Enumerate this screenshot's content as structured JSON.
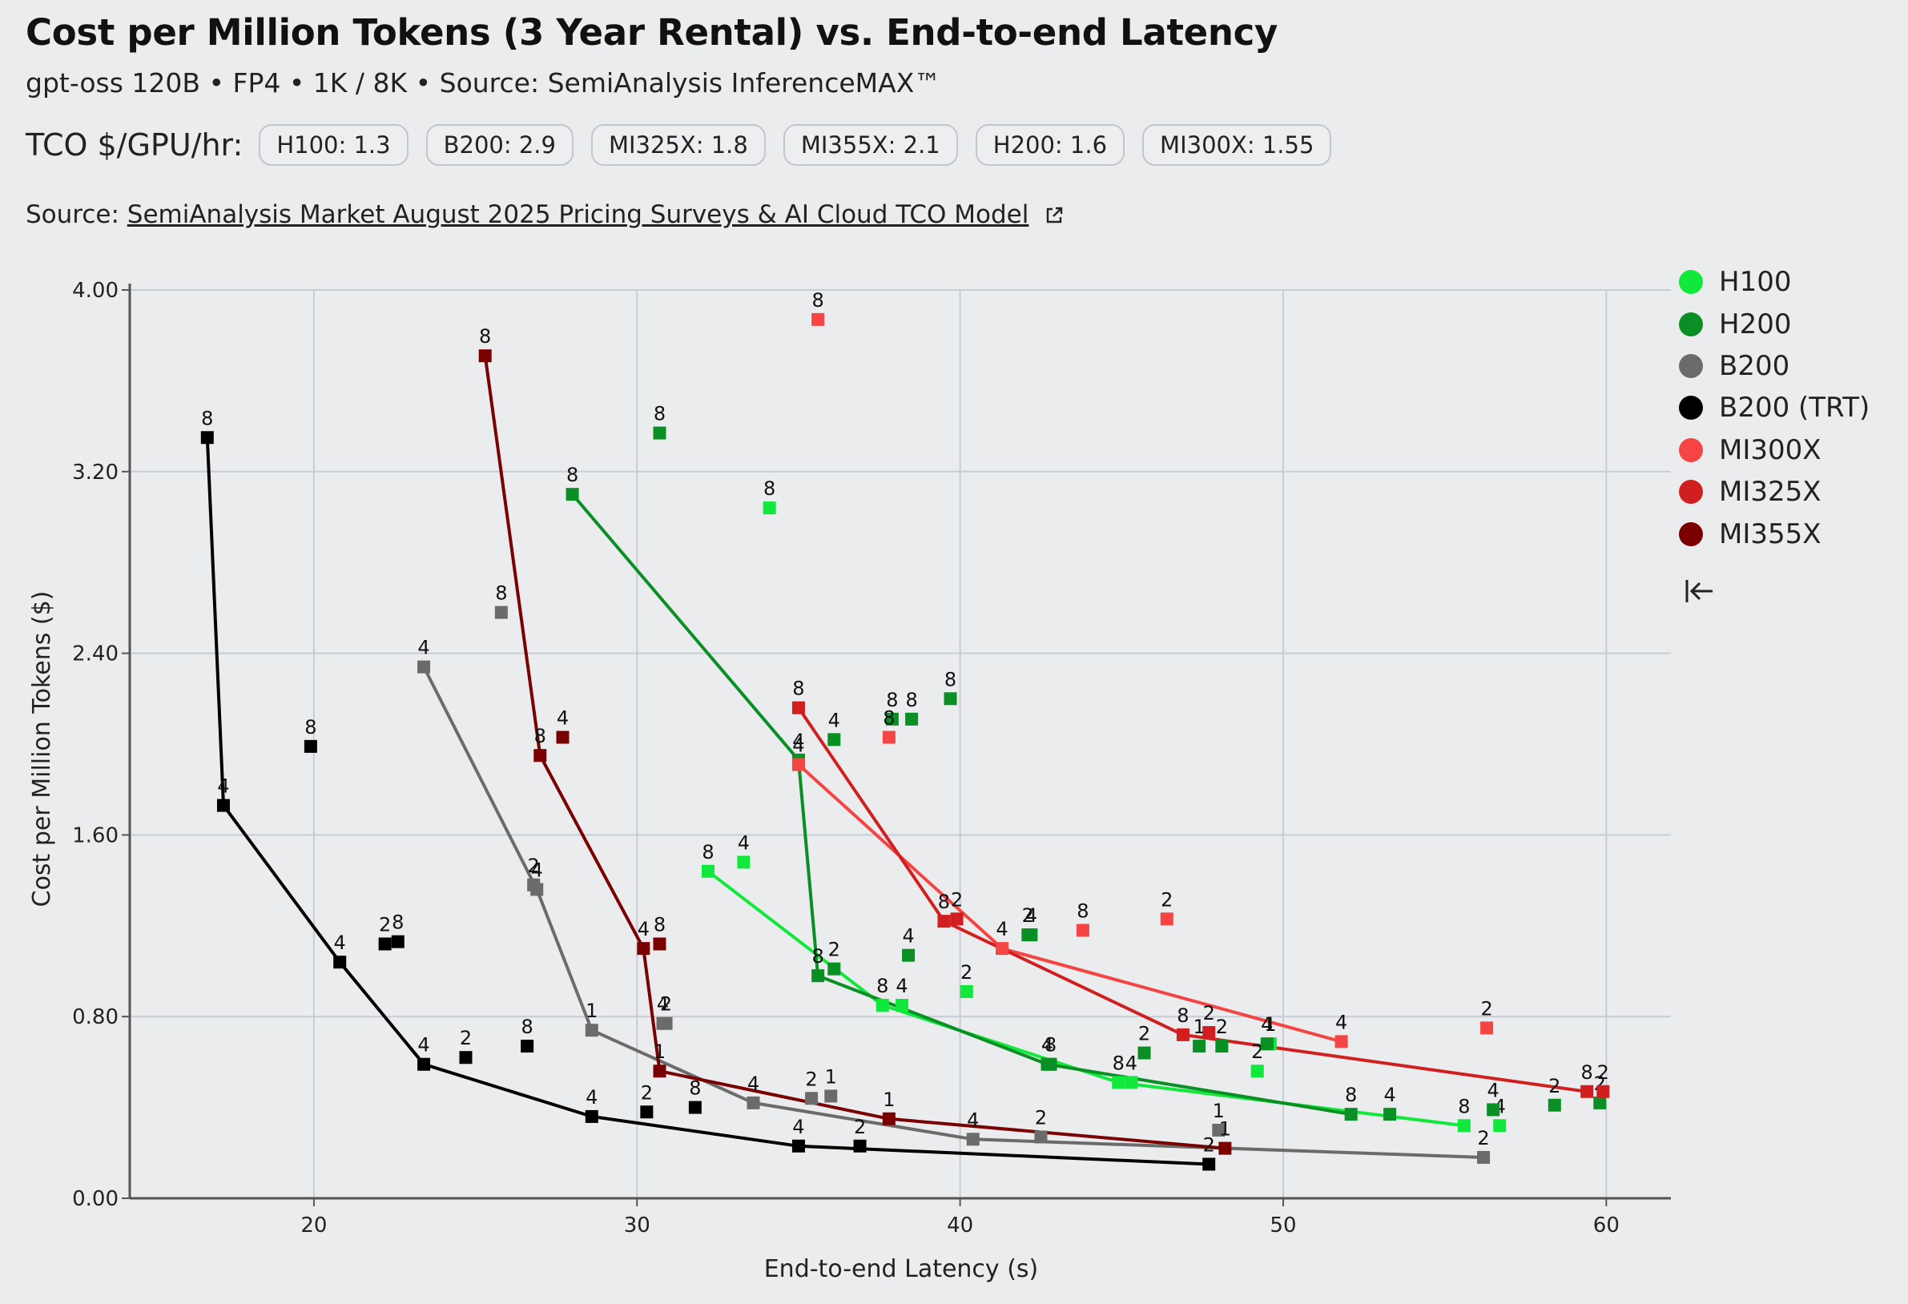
{
  "title": "Cost per Million Tokens (3 Year Rental) vs. End-to-end Latency",
  "subtitle": "gpt-oss 120B • FP4 • 1K / 8K • Source: SemiAnalysis InferenceMAX™",
  "tco": {
    "label": "TCO $/GPU/hr:",
    "chips": [
      "H100: 1.3",
      "B200: 2.9",
      "MI325X: 1.8",
      "MI355X: 2.1",
      "H200: 1.6",
      "MI300X: 1.55"
    ]
  },
  "source": {
    "prefix": "Source:",
    "link_text": "SemiAnalysis Market August 2025 Pricing Surveys & AI Cloud TCO Model",
    "icon": "external-link-icon"
  },
  "legend": {
    "collapse_icon": "collapse-left-icon",
    "items": [
      {
        "name": "H100",
        "color": "#11e83c"
      },
      {
        "name": "H200",
        "color": "#0a8f25"
      },
      {
        "name": "B200",
        "color": "#6b6b6b"
      },
      {
        "name": "B200 (TRT)",
        "color": "#000000"
      },
      {
        "name": "MI300X",
        "color": "#f54444"
      },
      {
        "name": "MI325X",
        "color": "#d11f1f"
      },
      {
        "name": "MI355X",
        "color": "#7a0000"
      }
    ]
  },
  "chart_data": {
    "type": "scatter",
    "xlabel": "End-to-end Latency (s)",
    "ylabel": "Cost per Million Tokens ($)",
    "xlim": [
      14.3,
      62
    ],
    "ylim": [
      0,
      4.0
    ],
    "xticks": [
      20,
      30,
      40,
      50,
      60
    ],
    "yticks": [
      "0.00",
      "0.80",
      "1.60",
      "2.40",
      "3.20",
      "4.00"
    ],
    "grid": true,
    "legend_position": "right",
    "series": [
      {
        "name": "H100",
        "color": "#11e83c",
        "line": [
          [
            32.2,
            1.44
          ],
          [
            37.6,
            0.85
          ],
          [
            44.9,
            0.51
          ],
          [
            55.6,
            0.32
          ]
        ],
        "points": [
          {
            "x": 32.2,
            "y": 1.44,
            "label": "8"
          },
          {
            "x": 33.3,
            "y": 1.48,
            "label": "4"
          },
          {
            "x": 34.1,
            "y": 3.04,
            "label": "8"
          },
          {
            "x": 37.6,
            "y": 0.85,
            "label": "8"
          },
          {
            "x": 38.2,
            "y": 0.85,
            "label": "4"
          },
          {
            "x": 40.2,
            "y": 0.91,
            "label": "2"
          },
          {
            "x": 44.9,
            "y": 0.51,
            "label": "8"
          },
          {
            "x": 45.3,
            "y": 0.51,
            "label": "4"
          },
          {
            "x": 49.2,
            "y": 0.56,
            "label": "2"
          },
          {
            "x": 49.6,
            "y": 0.68,
            "label": "1"
          },
          {
            "x": 55.6,
            "y": 0.32,
            "label": "8"
          },
          {
            "x": 56.7,
            "y": 0.32,
            "label": "4"
          }
        ]
      },
      {
        "name": "H200",
        "color": "#0a8f25",
        "line": [
          [
            28.0,
            3.1
          ],
          [
            35.0,
            1.93
          ],
          [
            35.6,
            0.98
          ],
          [
            42.7,
            0.59
          ],
          [
            52.1,
            0.37
          ]
        ],
        "points": [
          {
            "x": 28.0,
            "y": 3.1,
            "label": "8"
          },
          {
            "x": 30.7,
            "y": 3.37,
            "label": "8"
          },
          {
            "x": 35.0,
            "y": 1.93,
            "label": "4"
          },
          {
            "x": 36.1,
            "y": 2.02,
            "label": "4"
          },
          {
            "x": 37.9,
            "y": 2.11,
            "label": "8"
          },
          {
            "x": 38.5,
            "y": 2.11,
            "label": "8"
          },
          {
            "x": 39.7,
            "y": 2.2,
            "label": "8"
          },
          {
            "x": 35.6,
            "y": 0.98,
            "label": "8"
          },
          {
            "x": 36.1,
            "y": 1.01,
            "label": "2"
          },
          {
            "x": 38.4,
            "y": 1.07,
            "label": "4"
          },
          {
            "x": 42.1,
            "y": 1.16,
            "label": "2"
          },
          {
            "x": 42.2,
            "y": 1.16,
            "label": "4"
          },
          {
            "x": 42.7,
            "y": 0.59,
            "label": "4"
          },
          {
            "x": 42.8,
            "y": 0.59,
            "label": "8"
          },
          {
            "x": 45.7,
            "y": 0.64,
            "label": "2"
          },
          {
            "x": 47.4,
            "y": 0.67,
            "label": "1"
          },
          {
            "x": 48.1,
            "y": 0.67,
            "label": "2"
          },
          {
            "x": 49.5,
            "y": 0.68,
            "label": "4"
          },
          {
            "x": 52.1,
            "y": 0.37,
            "label": "8"
          },
          {
            "x": 53.3,
            "y": 0.37,
            "label": "4"
          },
          {
            "x": 56.5,
            "y": 0.39,
            "label": "4"
          },
          {
            "x": 58.4,
            "y": 0.41,
            "label": "2"
          },
          {
            "x": 59.8,
            "y": 0.42,
            "label": "2"
          }
        ]
      },
      {
        "name": "B200",
        "color": "#6b6b6b",
        "line": [
          [
            23.4,
            2.34
          ],
          [
            26.9,
            1.36
          ],
          [
            28.6,
            0.74
          ],
          [
            33.6,
            0.42
          ],
          [
            40.4,
            0.26
          ],
          [
            56.2,
            0.18
          ]
        ],
        "points": [
          {
            "x": 23.4,
            "y": 2.34,
            "label": "4"
          },
          {
            "x": 25.8,
            "y": 2.58,
            "label": "8"
          },
          {
            "x": 26.8,
            "y": 1.38,
            "label": "2"
          },
          {
            "x": 26.9,
            "y": 1.36,
            "label": "4"
          },
          {
            "x": 28.6,
            "y": 0.74,
            "label": "1"
          },
          {
            "x": 30.8,
            "y": 0.77,
            "label": "4"
          },
          {
            "x": 30.9,
            "y": 0.77,
            "label": "2"
          },
          {
            "x": 33.6,
            "y": 0.42,
            "label": "4"
          },
          {
            "x": 35.4,
            "y": 0.44,
            "label": "2"
          },
          {
            "x": 36.0,
            "y": 0.45,
            "label": "1"
          },
          {
            "x": 40.4,
            "y": 0.26,
            "label": "4"
          },
          {
            "x": 42.5,
            "y": 0.27,
            "label": "2"
          },
          {
            "x": 48.0,
            "y": 0.3,
            "label": "1"
          },
          {
            "x": 56.2,
            "y": 0.18,
            "label": "2"
          }
        ]
      },
      {
        "name": "B200 (TRT)",
        "color": "#000000",
        "line": [
          [
            16.7,
            3.35
          ],
          [
            17.2,
            1.73
          ],
          [
            20.8,
            1.04
          ],
          [
            23.4,
            0.59
          ],
          [
            28.6,
            0.36
          ],
          [
            35.0,
            0.23
          ],
          [
            47.7,
            0.15
          ]
        ],
        "points": [
          {
            "x": 16.7,
            "y": 3.35,
            "label": "8"
          },
          {
            "x": 17.2,
            "y": 1.73,
            "label": "4"
          },
          {
            "x": 19.9,
            "y": 1.99,
            "label": "8"
          },
          {
            "x": 20.8,
            "y": 1.04,
            "label": "4"
          },
          {
            "x": 22.2,
            "y": 1.12,
            "label": "2"
          },
          {
            "x": 22.6,
            "y": 1.13,
            "label": "8"
          },
          {
            "x": 23.4,
            "y": 0.59,
            "label": "4"
          },
          {
            "x": 24.7,
            "y": 0.62,
            "label": "2"
          },
          {
            "x": 26.6,
            "y": 0.67,
            "label": "8"
          },
          {
            "x": 28.6,
            "y": 0.36,
            "label": "4"
          },
          {
            "x": 30.3,
            "y": 0.38,
            "label": "2"
          },
          {
            "x": 31.8,
            "y": 0.4,
            "label": "8"
          },
          {
            "x": 35.0,
            "y": 0.23,
            "label": "4"
          },
          {
            "x": 36.9,
            "y": 0.23,
            "label": "2"
          },
          {
            "x": 47.7,
            "y": 0.15,
            "label": "2"
          }
        ]
      },
      {
        "name": "MI300X",
        "color": "#f54444",
        "line": [
          [
            35.0,
            1.91
          ],
          [
            41.3,
            1.1
          ],
          [
            51.8,
            0.69
          ]
        ],
        "points": [
          {
            "x": 35.6,
            "y": 3.87,
            "label": "8"
          },
          {
            "x": 35.0,
            "y": 1.91,
            "label": "4"
          },
          {
            "x": 37.8,
            "y": 2.03,
            "label": "8"
          },
          {
            "x": 41.3,
            "y": 1.1,
            "label": "4"
          },
          {
            "x": 43.8,
            "y": 1.18,
            "label": "8"
          },
          {
            "x": 46.4,
            "y": 1.23,
            "label": "2"
          },
          {
            "x": 51.8,
            "y": 0.69,
            "label": "4"
          },
          {
            "x": 56.3,
            "y": 0.75,
            "label": "2"
          }
        ]
      },
      {
        "name": "MI325X",
        "color": "#d11f1f",
        "line": [
          [
            35.0,
            2.16
          ],
          [
            39.5,
            1.22
          ],
          [
            46.9,
            0.72
          ],
          [
            59.4,
            0.47
          ]
        ],
        "points": [
          {
            "x": 35.0,
            "y": 2.16,
            "label": "8"
          },
          {
            "x": 39.5,
            "y": 1.22,
            "label": "8"
          },
          {
            "x": 39.9,
            "y": 1.23,
            "label": "2"
          },
          {
            "x": 46.9,
            "y": 0.72,
            "label": "8"
          },
          {
            "x": 47.7,
            "y": 0.73,
            "label": "2"
          },
          {
            "x": 59.4,
            "y": 0.47,
            "label": "8"
          },
          {
            "x": 59.9,
            "y": 0.47,
            "label": "2"
          }
        ]
      },
      {
        "name": "MI355X",
        "color": "#7a0000",
        "line": [
          [
            25.3,
            3.71
          ],
          [
            27.0,
            1.95
          ],
          [
            30.2,
            1.1
          ],
          [
            30.7,
            0.56
          ],
          [
            37.8,
            0.35
          ],
          [
            48.2,
            0.22
          ]
        ],
        "points": [
          {
            "x": 25.3,
            "y": 3.71,
            "label": "8"
          },
          {
            "x": 27.0,
            "y": 1.95,
            "label": "8"
          },
          {
            "x": 27.7,
            "y": 2.03,
            "label": "4"
          },
          {
            "x": 30.2,
            "y": 1.1,
            "label": "4"
          },
          {
            "x": 30.7,
            "y": 1.12,
            "label": "8"
          },
          {
            "x": 30.7,
            "y": 0.56,
            "label": "1"
          },
          {
            "x": 37.8,
            "y": 0.35,
            "label": "1"
          },
          {
            "x": 48.2,
            "y": 0.22,
            "label": "1"
          }
        ]
      }
    ]
  }
}
